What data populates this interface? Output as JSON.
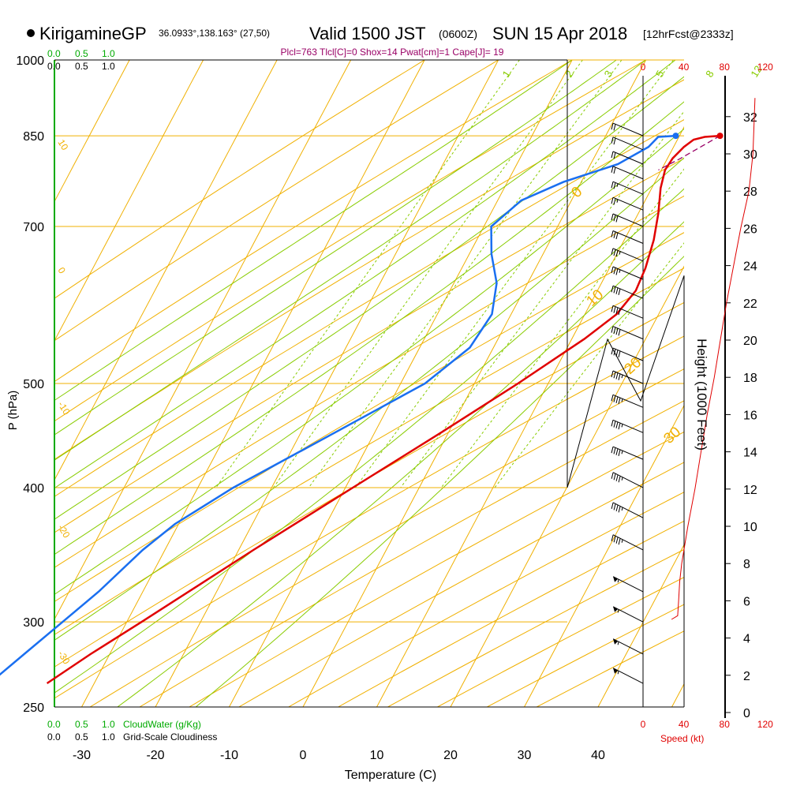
{
  "header": {
    "station": "KirigamineGP",
    "coords": "36.0933°,138.163° (27,50)",
    "valid": "Valid 1500 JST",
    "utc": "(0600Z)",
    "date": "SUN 15 Apr 2018",
    "fcst": "[12hrFcst@2333z]",
    "params": "Plcl=763 Tlcl[C]=0 Shox=14 Pwat[cm]=1 Cape[J]= 19"
  },
  "colors": {
    "isotherm": "#f0b000",
    "dry_adiabat": "#f0b000",
    "moist_adiabat": "#88cc00",
    "mixing_ratio": "#88cc00",
    "temperature": "#e00000",
    "dewpoint": "#1a6ff0",
    "cloud_bar": "#00aa00",
    "speed_label": "#e00000",
    "param_text": "#990066"
  },
  "labels": {
    "x_axis": "Temperature (C)",
    "y_axis": "P (hPa)",
    "height_axis": "Height (1000 Feet)",
    "cloudwater": "CloudWater (g/Kg)",
    "cloudiness": "Grid-Scale Cloudiness",
    "speed": "Speed (kt)",
    "cw_scale": [
      "0.0",
      "0.5",
      "1.0"
    ],
    "cl_scale": [
      "0.0",
      "0.5",
      "1.0"
    ]
  },
  "chart_data": {
    "type": "skew-t",
    "pressure_ticks": [
      250,
      300,
      400,
      500,
      700,
      850,
      1000
    ],
    "temp_ticks": [
      -30,
      -20,
      -10,
      0,
      10,
      20,
      30,
      40
    ],
    "height_ticks_kft": [
      0,
      2,
      4,
      6,
      8,
      10,
      12,
      14,
      16,
      18,
      20,
      22,
      24,
      26,
      28,
      30,
      32
    ],
    "speed_ticks_kt": [
      0,
      40,
      80,
      120
    ],
    "mixing_ratio_labels": [
      "1",
      "2",
      "3",
      "5",
      "8",
      "12",
      "20"
    ],
    "isotherm_labels": [
      "10",
      "0",
      "-10",
      "-20",
      "-30"
    ],
    "adiabat_labels": [
      "0",
      "10",
      "20",
      "30"
    ],
    "temperature_profile": [
      {
        "p": 850,
        "t": 15.5
      },
      {
        "p": 848,
        "t": 13.5
      },
      {
        "p": 843,
        "t": 12.2
      },
      {
        "p": 830,
        "t": 11.4
      },
      {
        "p": 810,
        "t": 10.7
      },
      {
        "p": 790,
        "t": 10.5
      },
      {
        "p": 760,
        "t": 11.2
      },
      {
        "p": 720,
        "t": 12.7
      },
      {
        "p": 680,
        "t": 14.0
      },
      {
        "p": 640,
        "t": 14.9
      },
      {
        "p": 610,
        "t": 15.2
      },
      {
        "p": 580,
        "t": 14.3
      },
      {
        "p": 550,
        "t": 11.7
      },
      {
        "p": 500,
        "t": 5.9
      },
      {
        "p": 450,
        "t": -1.0
      },
      {
        "p": 400,
        "t": -9.0
      },
      {
        "p": 350,
        "t": -18.0
      },
      {
        "p": 300,
        "t": -28.0
      },
      {
        "p": 280,
        "t": -32.6
      },
      {
        "p": 263,
        "t": -36.4
      }
    ],
    "dewpoint_profile": [
      {
        "p": 850,
        "t": 9.5
      },
      {
        "p": 848,
        "t": 7.2
      },
      {
        "p": 830,
        "t": 6.6
      },
      {
        "p": 800,
        "t": 3.7
      },
      {
        "p": 770,
        "t": -2.4
      },
      {
        "p": 740,
        "t": -6.8
      },
      {
        "p": 700,
        "t": -9.0
      },
      {
        "p": 660,
        "t": -7.0
      },
      {
        "p": 620,
        "t": -4.2
      },
      {
        "p": 580,
        "t": -2.6
      },
      {
        "p": 540,
        "t": -3.2
      },
      {
        "p": 500,
        "t": -6.7
      },
      {
        "p": 450,
        "t": -15.4
      },
      {
        "p": 400,
        "t": -25.2
      },
      {
        "p": 370,
        "t": -30.5
      },
      {
        "p": 350,
        "t": -33.0
      },
      {
        "p": 320,
        "t": -36.0
      },
      {
        "p": 300,
        "t": -38.7
      },
      {
        "p": 280,
        "t": -41.6
      },
      {
        "p": 263,
        "t": -44.2
      }
    ],
    "parcel_profile": [
      {
        "p": 850,
        "t": 15.5
      },
      {
        "p": 810,
        "t": 11.8
      },
      {
        "p": 790,
        "t": 9.6
      }
    ],
    "surface_marker": {
      "p": 850,
      "t": 15.5,
      "td": 9.5
    },
    "winds": [
      {
        "p": 263,
        "dir": 265,
        "kt": 55
      },
      {
        "p": 280,
        "dir": 265,
        "kt": 55
      },
      {
        "p": 300,
        "dir": 265,
        "kt": 55
      },
      {
        "p": 320,
        "dir": 265,
        "kt": 55
      },
      {
        "p": 350,
        "dir": 265,
        "kt": 45
      },
      {
        "p": 375,
        "dir": 265,
        "kt": 45
      },
      {
        "p": 400,
        "dir": 265,
        "kt": 45
      },
      {
        "p": 425,
        "dir": 270,
        "kt": 45
      },
      {
        "p": 450,
        "dir": 270,
        "kt": 45
      },
      {
        "p": 475,
        "dir": 270,
        "kt": 45
      },
      {
        "p": 500,
        "dir": 270,
        "kt": 45
      },
      {
        "p": 525,
        "dir": 270,
        "kt": 40
      },
      {
        "p": 550,
        "dir": 270,
        "kt": 40
      },
      {
        "p": 575,
        "dir": 270,
        "kt": 40
      },
      {
        "p": 600,
        "dir": 270,
        "kt": 40
      },
      {
        "p": 625,
        "dir": 270,
        "kt": 35
      },
      {
        "p": 650,
        "dir": 270,
        "kt": 35
      },
      {
        "p": 675,
        "dir": 270,
        "kt": 30
      },
      {
        "p": 700,
        "dir": 270,
        "kt": 30
      },
      {
        "p": 725,
        "dir": 270,
        "kt": 25
      },
      {
        "p": 750,
        "dir": 270,
        "kt": 25
      },
      {
        "p": 775,
        "dir": 270,
        "kt": 20
      },
      {
        "p": 800,
        "dir": 270,
        "kt": 20
      },
      {
        "p": 825,
        "dir": 270,
        "kt": 20
      },
      {
        "p": 850,
        "dir": 270,
        "kt": 20
      }
    ],
    "wind_speed_profile": [
      {
        "kft": 5.0,
        "kt": 28
      },
      {
        "kft": 5.2,
        "kt": 34
      },
      {
        "kft": 6.0,
        "kt": 35
      },
      {
        "kft": 7.0,
        "kt": 36
      },
      {
        "kft": 8.0,
        "kt": 38
      },
      {
        "kft": 10.0,
        "kt": 44
      },
      {
        "kft": 12.0,
        "kt": 51
      },
      {
        "kft": 14.0,
        "kt": 57
      },
      {
        "kft": 16.0,
        "kt": 63
      },
      {
        "kft": 18.0,
        "kt": 70
      },
      {
        "kft": 20.0,
        "kt": 76
      },
      {
        "kft": 22.0,
        "kt": 82
      },
      {
        "kft": 24.0,
        "kt": 89
      },
      {
        "kft": 26.0,
        "kt": 96
      },
      {
        "kft": 28.0,
        "kt": 104
      },
      {
        "kft": 30.0,
        "kt": 108
      },
      {
        "kft": 31.5,
        "kt": 109
      },
      {
        "kft": 33.0,
        "kt": 110
      }
    ]
  }
}
